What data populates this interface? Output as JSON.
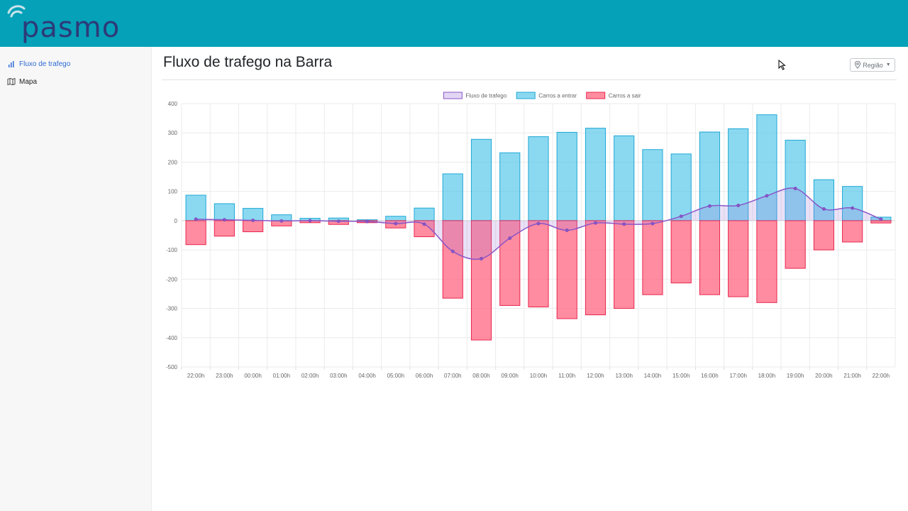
{
  "brand": {
    "name": "pasmo"
  },
  "sidebar": {
    "items": [
      {
        "label": "Fluxo de trafego",
        "icon": "bar-chart-icon",
        "active": true
      },
      {
        "label": "Mapa",
        "icon": "map-icon",
        "active": false
      }
    ]
  },
  "header": {
    "title": "Fluxo de trafego na Barra",
    "region_button": {
      "label": "Região",
      "icon": "map-pin-icon"
    }
  },
  "colors": {
    "topbar": "#05a1b8",
    "logo": "#2d3a78",
    "entrar": "#4dc4ea",
    "sair": "#ff6680",
    "fluxo": "#8a55c8"
  },
  "chart_data": {
    "type": "bar",
    "categories": [
      "22:00h",
      "23:00h",
      "00:00h",
      "01:00h",
      "02:00h",
      "03:00h",
      "04:00h",
      "05:00h",
      "06:00h",
      "07:00h",
      "08:00h",
      "09:00h",
      "10:00h",
      "11:00h",
      "12:00h",
      "13:00h",
      "14:00h",
      "15:00h",
      "16:00h",
      "17:00h",
      "18:00h",
      "19:00h",
      "20:00h",
      "21:00h",
      "22:00h"
    ],
    "ylim": [
      -500,
      400
    ],
    "yticks": [
      400,
      300,
      200,
      100,
      0,
      -100,
      -200,
      -300,
      -400,
      -500
    ],
    "grid": true,
    "legend_position": "top-center",
    "series": [
      {
        "name": "Fluxo de trafego",
        "type": "line",
        "values": [
          5,
          3,
          1,
          -1,
          0,
          -2,
          -3,
          -10,
          -12,
          -105,
          -130,
          -60,
          -10,
          -33,
          -8,
          -12,
          -10,
          15,
          50,
          52,
          85,
          110,
          40,
          43,
          5
        ]
      },
      {
        "name": "Carros a entrar",
        "type": "bar",
        "values": [
          87,
          58,
          42,
          20,
          8,
          9,
          3,
          15,
          43,
          160,
          278,
          232,
          287,
          302,
          316,
          290,
          243,
          228,
          303,
          314,
          362,
          275,
          140,
          117,
          12
        ]
      },
      {
        "name": "Carros a sair",
        "type": "bar",
        "values": [
          -82,
          -53,
          -38,
          -18,
          -7,
          -13,
          -7,
          -25,
          -55,
          -265,
          -408,
          -290,
          -295,
          -335,
          -322,
          -300,
          -253,
          -213,
          -253,
          -260,
          -280,
          -163,
          -100,
          -73,
          -8
        ]
      }
    ]
  }
}
